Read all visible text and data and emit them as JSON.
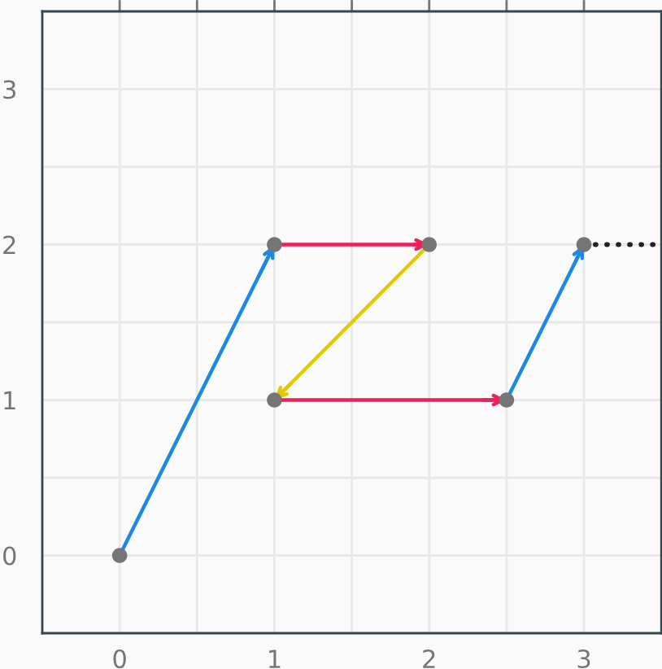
{
  "chart_data": {
    "type": "line",
    "xlim": [
      -0.5,
      3.5
    ],
    "ylim": [
      -0.5,
      3.5
    ],
    "xticks": [
      0,
      {
        "value": 0.5,
        "label": null
      },
      1,
      {
        "value": 1.5,
        "label": null
      },
      2,
      {
        "value": 2.5,
        "label": null
      },
      3
    ],
    "yticks": [
      0,
      {
        "value": 0.5,
        "label": null
      },
      1,
      {
        "value": 1.5,
        "label": null
      },
      2,
      {
        "value": 2.5,
        "label": null
      },
      3
    ],
    "grid": true,
    "legend": false,
    "series": [
      {
        "color": "#1e88e5",
        "x": [
          0,
          1,
          null,
          2.5,
          3
        ],
        "values": [
          0,
          2,
          null,
          1,
          2
        ],
        "marker": "none",
        "line_style": "solid"
      },
      {
        "color": "#f01e5a",
        "x": [
          1,
          2,
          null,
          1,
          2.5
        ],
        "values": [
          2,
          2,
          null,
          1,
          1
        ],
        "marker": "none",
        "line_style": "solid"
      },
      {
        "color": "#e6c800",
        "x": [
          2,
          1
        ],
        "values": [
          2,
          1
        ],
        "marker": "none",
        "line_style": "solid"
      },
      {
        "color": "#212121",
        "x": [
          3,
          3.5
        ],
        "values": [
          2,
          2
        ],
        "marker": "none",
        "line_style": "dotted"
      },
      {
        "type": "scatter",
        "color": "#757575",
        "x": [
          0,
          1,
          2,
          1,
          2.5,
          3
        ],
        "values": [
          0,
          2,
          2,
          1,
          1,
          2
        ],
        "marker": "circle"
      }
    ]
  }
}
